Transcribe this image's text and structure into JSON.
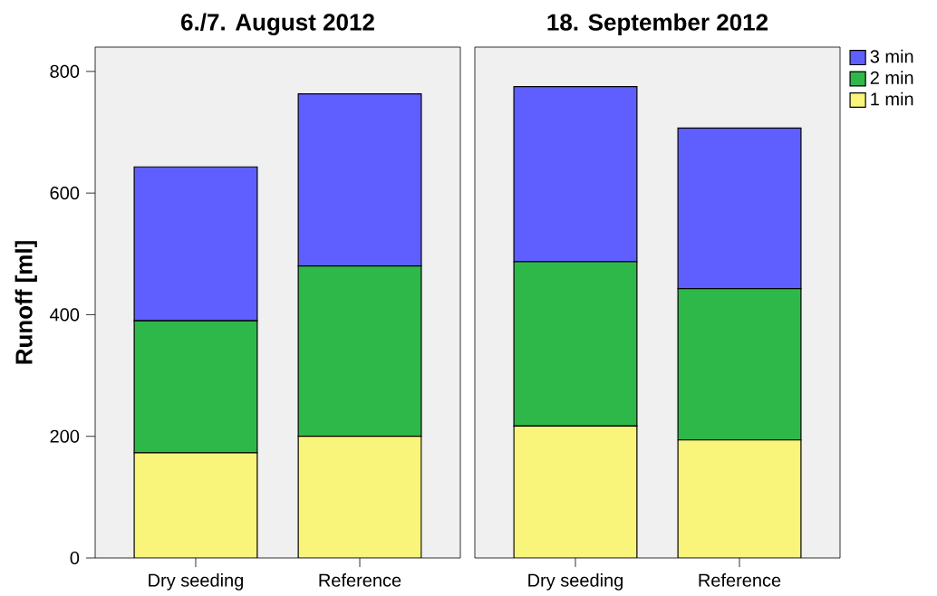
{
  "chart_data": [
    {
      "type": "bar",
      "stacked": true,
      "title": "6./7. August 2012",
      "ylabel": "Runoff [ml]",
      "categories": [
        "Dry seeding",
        "Reference"
      ],
      "ylim": [
        0,
        840
      ],
      "yticks": [
        0,
        200,
        400,
        600,
        800
      ],
      "legend": false,
      "series": [
        {
          "color": "#f8f57a",
          "values": [
            173,
            200
          ]
        },
        {
          "color": "#2fb84a",
          "values": [
            217,
            280
          ]
        },
        {
          "color": "#5f5fff",
          "values": [
            253,
            283
          ]
        }
      ]
    },
    {
      "type": "bar",
      "stacked": true,
      "title": "18. September 2012",
      "categories": [
        "Dry seeding",
        "Reference"
      ],
      "ylim": [
        0,
        840
      ],
      "tick_labels": "x",
      "legend": "right",
      "series": [
        {
          "name": "1 min",
          "color": "#f8f57a",
          "values": [
            217,
            194
          ]
        },
        {
          "name": "2 min",
          "color": "#2fb84a",
          "values": [
            270,
            249
          ]
        },
        {
          "name": "3 min",
          "color": "#5f5fff",
          "values": [
            288,
            264
          ]
        }
      ]
    }
  ]
}
